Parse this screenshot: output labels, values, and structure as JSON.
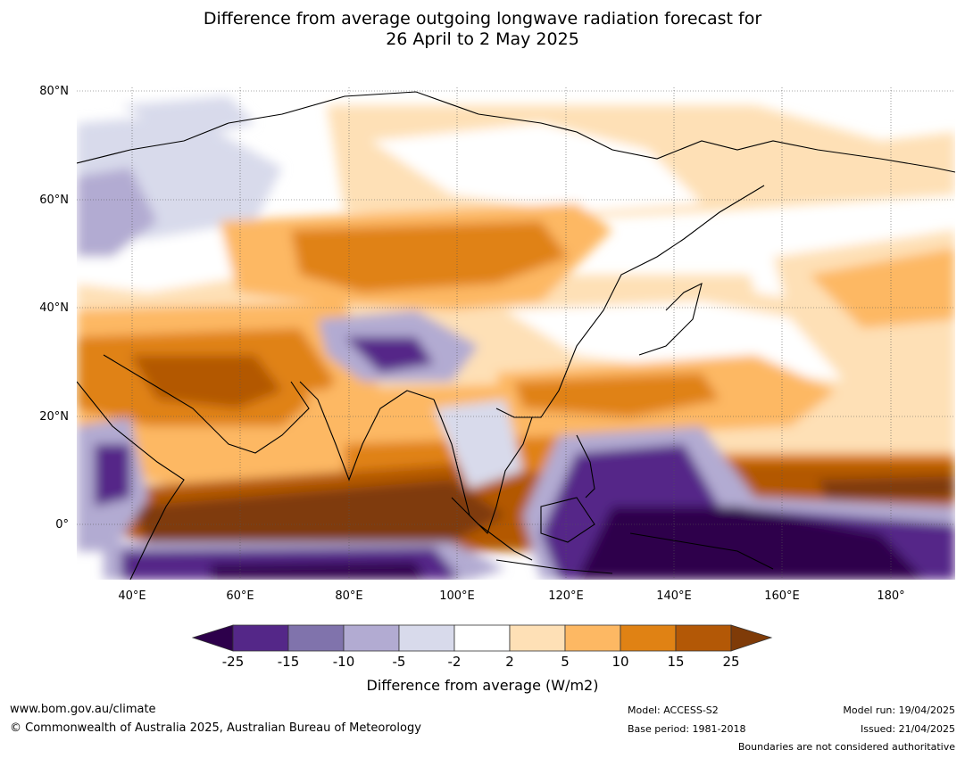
{
  "title": {
    "line1": "Difference from average outgoing longwave radiation forecast for",
    "line2": "26 April to 2 May 2025"
  },
  "map": {
    "lat_labels": [
      "80°N",
      "60°N",
      "40°N",
      "20°N",
      "0°"
    ],
    "lon_labels": [
      "40°E",
      "60°E",
      "80°E",
      "100°E",
      "120°E",
      "140°E",
      "160°E",
      "180°"
    ],
    "colors": {
      "strong_negative": "#2d004b",
      "negative_25_15": "#542788",
      "negative_15_10": "#8073ac",
      "negative_10_5": "#b2abd2",
      "negative_5_2": "#d8daeb",
      "neutral": "#ffffff",
      "positive_2_5": "#fee0b6",
      "positive_5_10": "#fdb863",
      "positive_10_15": "#e08214",
      "positive_15_25": "#b35806",
      "strong_positive": "#7f3b08",
      "coastline": "#000000",
      "borders": "#888888"
    }
  },
  "colorbar": {
    "ticks": [
      "-25",
      "-15",
      "-10",
      "-5",
      "-2",
      "2",
      "5",
      "10",
      "15",
      "25"
    ],
    "title": "Difference from average (W/m2)"
  },
  "footer": {
    "website": "www.bom.gov.au/climate",
    "copyright": "© Commonwealth of Australia 2025, Australian Bureau of Meteorology",
    "model": "Model: ACCESS-S2",
    "base_period": "Base period: 1981-2018",
    "model_run": "Model run: 19/04/2025",
    "issued": "Issued: 21/04/2025",
    "disclaimer": "Boundaries are not considered authoritative"
  }
}
